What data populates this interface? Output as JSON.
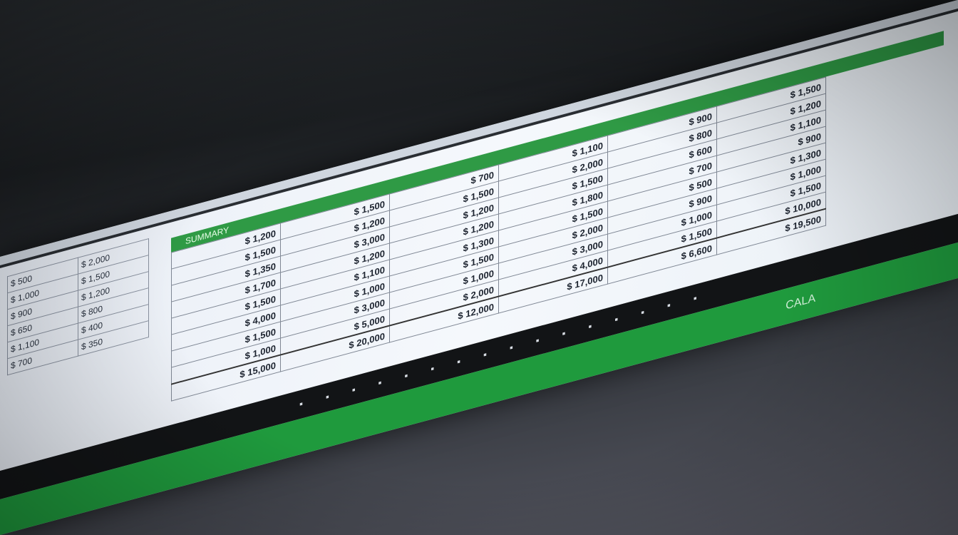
{
  "sheet": {
    "header_label": "SUMMARY",
    "rows": [
      [
        "$ 1,200",
        "$ 1,500",
        "$ 700",
        "$ 1,100",
        "$ 900",
        "$ 1,500"
      ],
      [
        "$ 1,500",
        "$ 1,200",
        "$ 1,500",
        "$ 2,000",
        "$ 800",
        "$ 1,200"
      ],
      [
        "$ 1,350",
        "$ 3,000",
        "$ 1,200",
        "$ 1,500",
        "$ 600",
        "$ 1,100"
      ],
      [
        "$ 1,700",
        "$ 1,200",
        "$ 1,200",
        "$ 1,800",
        "$ 700",
        "$ 900"
      ],
      [
        "$ 1,500",
        "$ 1,100",
        "$ 1,300",
        "$ 1,500",
        "$ 500",
        "$ 1,300"
      ],
      [
        "$ 4,000",
        "$ 1,000",
        "$ 1,500",
        "$ 2,000",
        "$ 900",
        "$ 1,000"
      ],
      [
        "$ 1,500",
        "$ 3,000",
        "$ 1,000",
        "$ 3,000",
        "$ 1,000",
        "$ 1,500"
      ],
      [
        "$ 1,000",
        "$ 5,000",
        "$ 2,000",
        "$ 4,000",
        "$ 1,500",
        "$ 10,000"
      ]
    ],
    "totals": [
      "$ 15,000",
      "$ 20,000",
      "$ 12,000",
      "$ 17,000",
      "$ 6,600",
      "$ 19,500"
    ]
  },
  "left_panel": [
    [
      "$ 500",
      "$ 2,000"
    ],
    [
      "$ 1,000",
      "$ 1,500"
    ],
    [
      "$ 900",
      "$ 1,200"
    ],
    [
      "$ 650",
      "$ 800"
    ],
    [
      "$ 1,100",
      "$ 400"
    ],
    [
      "$ 700",
      "$ 350"
    ]
  ],
  "bezel_keys": "▪ ▪ ▪ ▪ ▪ ▪ ▪ ▪ ▪ ▪ ▪ ▪ ▪ ▪ ▪ ▪",
  "brand_label": "CALA"
}
